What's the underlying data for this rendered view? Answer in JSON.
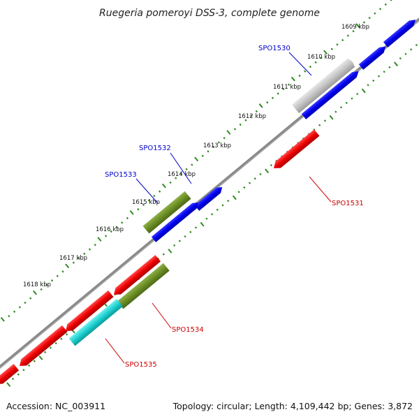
{
  "title": "Ruegeria pomeroyi DSS-3, complete genome",
  "footer": {
    "accession": "Accession: NC_003911",
    "summary": "Topology: circular; Length: 4,109,442 bp; Genes: 3,872"
  },
  "ticks": [
    "1609 kbp",
    "1610 kbp",
    "1611 kbp",
    "1612 kbp",
    "1613 kbp",
    "1614 kbp",
    "1615 kbp",
    "1616 kbp",
    "1617 kbp",
    "1618 kbp"
  ],
  "genes": [
    {
      "id": "SPO1530",
      "color": "#0000cc",
      "feature_color": "#b0b0b0"
    },
    {
      "id": "SPO1531",
      "color": "#cc0000",
      "feature_color": "#dd0000"
    },
    {
      "id": "SPO1532",
      "color": "#0000cc",
      "feature_color": "#6b8e23"
    },
    {
      "id": "SPO1533",
      "color": "#0000cc",
      "feature_color": "#6b8e23"
    },
    {
      "id": "SPO1534",
      "color": "#cc0000",
      "feature_color": "#6b8e23"
    },
    {
      "id": "SPO1535",
      "color": "#cc0000",
      "feature_color": "#00cccc"
    }
  ],
  "colors": {
    "forward_strand": "#0000ff",
    "reverse_strand": "#ff0000",
    "backbone": "#888888",
    "tick_marks": "#2e8b20"
  }
}
